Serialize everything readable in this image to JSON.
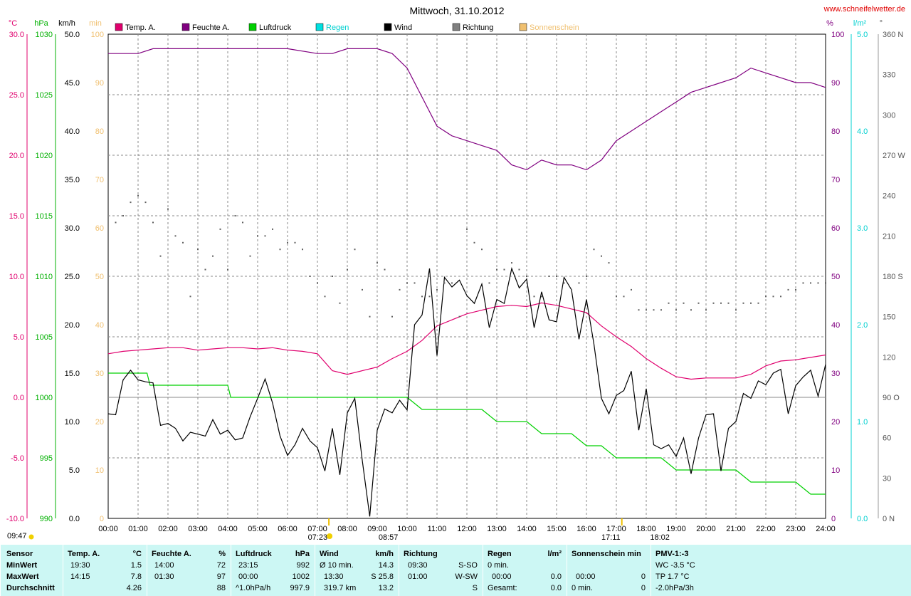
{
  "title": "Mittwoch, 31.10.2012",
  "site": "www.schneifelwetter.de",
  "units": {
    "temp": "°C",
    "press": "hPa",
    "speed": "km/h",
    "sun": "min",
    "hum": "%",
    "rain": "l/m²",
    "dir": "°"
  },
  "legend": [
    {
      "label": "Temp. A.",
      "color": "#e0006e"
    },
    {
      "label": "Feuchte A.",
      "color": "#800080"
    },
    {
      "label": "Luftdruck",
      "color": "#00d000"
    },
    {
      "label": "Regen",
      "color": "#00e0e0"
    },
    {
      "label": "Wind",
      "color": "#000000"
    },
    {
      "label": "Richtung",
      "color": "#808080"
    },
    {
      "label": "Sonnenschein",
      "color": "#f0c070"
    }
  ],
  "axes": {
    "temp": [
      "30.0",
      "25.0",
      "20.0",
      "15.0",
      "10.0",
      "5.0",
      "0.0",
      "-5.0",
      "-10.0"
    ],
    "press": [
      "1030",
      "1025",
      "1020",
      "1015",
      "1010",
      "1005",
      "1000",
      "995",
      "990"
    ],
    "wind": [
      "50.0",
      "45.0",
      "40.0",
      "35.0",
      "30.0",
      "25.0",
      "20.0",
      "15.0",
      "10.0",
      "5.0",
      "0.0"
    ],
    "sun": [
      "100",
      "90",
      "80",
      "70",
      "60",
      "50",
      "40",
      "30",
      "20",
      "10",
      "0"
    ],
    "hum": [
      "100",
      "90",
      "80",
      "70",
      "60",
      "50",
      "40",
      "30",
      "20",
      "10",
      "0"
    ],
    "rain": [
      "5.0",
      "4.0",
      "3.0",
      "2.0",
      "1.0",
      "0.0"
    ],
    "dir": [
      "360 N",
      "330",
      "300",
      "270 W",
      "240",
      "210",
      "180 S",
      "150",
      "120",
      "90 O",
      "60",
      "30",
      "0 N"
    ],
    "time": [
      "00:00",
      "01:00",
      "02:00",
      "03:00",
      "04:00",
      "05:00",
      "06:00",
      "07:00",
      "08:00",
      "09:00",
      "10:00",
      "11:00",
      "12:00",
      "13:00",
      "14:00",
      "15:00",
      "16:00",
      "17:00",
      "18:00",
      "19:00",
      "20:00",
      "21:00",
      "22:00",
      "23:00",
      "24:00"
    ]
  },
  "sun_events": {
    "sunshine_start": "09:47",
    "sunrise": "07:23",
    "high": "08:57",
    "sunset": "17:11",
    "twilight": "18:02"
  },
  "chart_data": {
    "type": "line",
    "title": "Mittwoch, 31.10.2012",
    "x_unit": "hours",
    "series": [
      {
        "name": "Temp. A.",
        "unit": "°C",
        "axis": "temp",
        "ylim": [
          -10,
          30
        ],
        "x": [
          0,
          0.5,
          1,
          1.5,
          2,
          2.5,
          3,
          3.5,
          4,
          4.5,
          5,
          5.5,
          6,
          6.5,
          7,
          7.5,
          8,
          8.5,
          9,
          9.5,
          10,
          10.5,
          11,
          11.5,
          12,
          12.5,
          13,
          13.5,
          14,
          14.5,
          15,
          15.5,
          16,
          16.5,
          17,
          17.5,
          18,
          18.5,
          19,
          19.5,
          20,
          20.5,
          21,
          21.5,
          22,
          22.5,
          23,
          23.5,
          24
        ],
        "y": [
          3.6,
          3.8,
          3.9,
          4.0,
          4.1,
          4.1,
          3.9,
          4.0,
          4.1,
          4.1,
          4.0,
          4.1,
          3.9,
          3.8,
          3.6,
          2.2,
          1.9,
          2.2,
          2.5,
          3.2,
          3.8,
          4.7,
          5.9,
          6.4,
          6.9,
          7.2,
          7.5,
          7.6,
          7.5,
          7.8,
          7.6,
          7.3,
          7.0,
          5.9,
          5.0,
          4.2,
          3.2,
          2.4,
          1.7,
          1.5,
          1.6,
          1.6,
          1.6,
          1.9,
          2.6,
          3.0,
          3.1,
          3.3,
          3.5
        ]
      },
      {
        "name": "Feuchte A.",
        "unit": "%",
        "axis": "hum",
        "ylim": [
          0,
          100
        ],
        "x": [
          0,
          1,
          1.5,
          2,
          3,
          4,
          5,
          6,
          7,
          7.5,
          8,
          9,
          9.5,
          10,
          10.5,
          11,
          11.5,
          12,
          12.5,
          13,
          13.5,
          14,
          14.5,
          15,
          15.5,
          16,
          16.5,
          17,
          17.5,
          18,
          18.5,
          19,
          19.5,
          20,
          20.5,
          21,
          21.5,
          22,
          22.5,
          23,
          23.5,
          24
        ],
        "y": [
          96,
          96,
          97,
          97,
          97,
          97,
          97,
          97,
          96,
          96,
          97,
          97,
          96,
          93,
          87,
          81,
          79,
          78,
          77,
          76,
          73,
          72,
          74,
          73,
          73,
          72,
          74,
          78,
          80,
          82,
          84,
          86,
          88,
          89,
          90,
          91,
          93,
          92,
          91,
          90,
          90,
          89
        ]
      },
      {
        "name": "Luftdruck",
        "unit": "hPa",
        "axis": "press",
        "ylim": [
          990,
          1030
        ],
        "x": [
          0,
          1.3,
          1.4,
          4,
          4.1,
          7,
          7.1,
          10,
          10.5,
          12.5,
          13,
          14,
          14.5,
          15.5,
          16,
          16.5,
          17,
          18.5,
          19,
          21,
          21.5,
          22,
          23,
          23.5,
          24
        ],
        "y": [
          1002,
          1002,
          1001,
          1001,
          1000,
          1000,
          1000,
          1000,
          999,
          999,
          998,
          998,
          997,
          997,
          996,
          996,
          995,
          995,
          994,
          994,
          993,
          993,
          993,
          992,
          992
        ]
      },
      {
        "name": "Wind",
        "unit": "km/h",
        "axis": "wind",
        "ylim": [
          0,
          50
        ],
        "x": [
          0,
          0.25,
          0.5,
          0.75,
          1,
          1.25,
          1.5,
          1.75,
          2,
          2.25,
          2.5,
          2.75,
          3,
          3.25,
          3.5,
          3.75,
          4,
          4.25,
          4.5,
          4.75,
          5,
          5.25,
          5.5,
          5.75,
          6,
          6.25,
          6.5,
          6.75,
          7,
          7.25,
          7.5,
          7.75,
          8,
          8.25,
          8.5,
          8.75,
          9,
          9.25,
          9.5,
          9.75,
          10,
          10.25,
          10.5,
          10.75,
          11,
          11.25,
          11.5,
          11.75,
          12,
          12.25,
          12.5,
          12.75,
          13,
          13.25,
          13.5,
          13.75,
          14,
          14.25,
          14.5,
          14.75,
          15,
          15.25,
          15.5,
          15.75,
          16,
          16.25,
          16.5,
          16.75,
          17,
          17.25,
          17.5,
          17.75,
          18,
          18.25,
          18.5,
          18.75,
          19,
          19.25,
          19.5,
          19.75,
          20,
          20.25,
          20.5,
          20.75,
          21,
          21.25,
          21.5,
          21.75,
          22,
          22.25,
          22.5,
          22.75,
          23,
          23.25,
          23.5,
          23.75,
          24
        ],
        "y": [
          10.8,
          10.7,
          14.3,
          15.3,
          14.3,
          14.1,
          14.0,
          9.6,
          9.8,
          9.3,
          8.0,
          8.9,
          8.7,
          8.5,
          10.2,
          8.7,
          9.1,
          8.1,
          8.3,
          10.5,
          12.4,
          14.4,
          11.9,
          8.5,
          6.5,
          7.6,
          9.3,
          8.0,
          7.3,
          4.9,
          9.3,
          4.5,
          10.9,
          12.4,
          6.0,
          0.2,
          9.1,
          11.3,
          10.9,
          12.2,
          11.2,
          20.0,
          21.0,
          25.8,
          16.8,
          24.9,
          23.9,
          24.6,
          23.0,
          22.2,
          24.2,
          19.7,
          22.6,
          22.2,
          25.8,
          23.8,
          24.7,
          19.7,
          23.4,
          20.5,
          20.3,
          24.9,
          23.6,
          18.5,
          22.6,
          18.0,
          12.4,
          10.8,
          12.7,
          13.2,
          15.2,
          9.1,
          13.4,
          7.6,
          7.2,
          7.6,
          6.4,
          8.3,
          4.6,
          8.3,
          10.7,
          10.8,
          4.9,
          9.3,
          10.0,
          12.9,
          12.4,
          14.2,
          13.8,
          15.0,
          15.4,
          10.8,
          13.7,
          14.6,
          15.3,
          12.6,
          15.9
        ]
      },
      {
        "name": "Richtung",
        "unit": "°",
        "axis": "dir",
        "ylim": [
          0,
          360
        ],
        "x": [
          0.25,
          0.5,
          0.75,
          1,
          1.25,
          1.5,
          1.75,
          2,
          2.25,
          2.5,
          2.75,
          3,
          3.25,
          3.5,
          3.75,
          4,
          4.25,
          4.5,
          4.75,
          5,
          5.25,
          5.5,
          5.75,
          6,
          6.25,
          6.5,
          6.75,
          7,
          7.25,
          7.5,
          7.75,
          8,
          8.25,
          8.5,
          8.75,
          9,
          9.25,
          9.5,
          9.75,
          10,
          10.25,
          10.5,
          10.75,
          11,
          11.25,
          11.5,
          11.75,
          12,
          12.25,
          12.5,
          12.75,
          13,
          13.25,
          13.5,
          13.75,
          14,
          14.25,
          14.5,
          14.75,
          15,
          15.25,
          15.5,
          15.75,
          16,
          16.25,
          16.5,
          16.75,
          17,
          17.25,
          17.5,
          17.75,
          18,
          18.25,
          18.5,
          18.75,
          19,
          19.25,
          19.5,
          19.75,
          20,
          20.25,
          20.5,
          20.75,
          21,
          21.25,
          21.5,
          21.75,
          22,
          22.25,
          22.5,
          22.75,
          23,
          23.25,
          23.5,
          23.75,
          24
        ],
        "y": [
          220,
          225,
          235,
          240,
          235,
          220,
          195,
          230,
          210,
          205,
          165,
          200,
          185,
          195,
          215,
          185,
          225,
          220,
          195,
          210,
          210,
          215,
          200,
          205,
          205,
          200,
          180,
          175,
          165,
          180,
          160,
          185,
          200,
          170,
          150,
          190,
          185,
          150,
          170,
          175,
          175,
          165,
          165,
          170,
          175,
          175,
          150,
          215,
          205,
          200,
          175,
          185,
          185,
          190,
          185,
          180,
          165,
          165,
          180,
          180,
          175,
          170,
          175,
          180,
          200,
          195,
          190,
          165,
          165,
          170,
          155,
          155,
          155,
          155,
          160,
          155,
          160,
          155,
          160,
          155,
          160,
          160,
          160,
          155,
          160,
          160,
          160,
          165,
          165,
          165,
          170,
          170,
          175,
          175,
          175,
          175
        ]
      },
      {
        "name": "Regen",
        "unit": "l/m²",
        "axis": "rain",
        "ylim": [
          0,
          5
        ],
        "x": [],
        "y": []
      },
      {
        "name": "Sonnenschein",
        "unit": "min",
        "axis": "sun",
        "ylim": [
          0,
          100
        ],
        "x": [],
        "y": []
      }
    ],
    "reference_line": {
      "axis": "temp",
      "value": 0
    }
  },
  "table": {
    "sensor": {
      "header": "Sensor",
      "rows": [
        "MinWert",
        "MaxWert",
        "Durchschnitt"
      ]
    },
    "temp": {
      "header": "Temp. A.",
      "unit": "°C",
      "times": [
        "19:30",
        "14:15",
        ""
      ],
      "values": [
        "1.5",
        "7.8",
        "4.26"
      ]
    },
    "hum": {
      "header": "Feuchte A.",
      "unit": "%",
      "times": [
        "14:00",
        "01:30",
        ""
      ],
      "values": [
        "72",
        "97",
        "88"
      ]
    },
    "press": {
      "header": "Luftdruck",
      "unit": "hPa",
      "times": [
        "23:15",
        "00:00",
        "^1.0hPa/h"
      ],
      "values": [
        "992",
        "1002",
        "997.9"
      ]
    },
    "wind": {
      "header": "Wind",
      "unit": "km/h",
      "times": [
        "Ø 10 min.",
        "13:30",
        "319.7 km"
      ],
      "mid": [
        "",
        "S 25.8",
        ""
      ],
      "values": [
        "14.3",
        "",
        "13.2"
      ]
    },
    "dir": {
      "header": "Richtung",
      "times": [
        "09:30",
        "01:00",
        ""
      ],
      "values": [
        "S-SO",
        "W-SW",
        "S"
      ]
    },
    "rain": {
      "header": "Regen",
      "unit": "l/m²",
      "times": [
        "0 min.",
        "00:00",
        "Gesamt:"
      ],
      "values": [
        "",
        "0.0",
        "0.0"
      ]
    },
    "sun": {
      "header": "Sonnenschein min",
      "times": [
        "",
        "00:00",
        "0 min."
      ],
      "values": [
        "",
        "0",
        "0"
      ]
    },
    "pmv": {
      "header": "PMV-1:-3",
      "lines": [
        "WC -3.5 °C",
        "TP 1.7 °C",
        "-2.0hPa/3h"
      ]
    }
  }
}
